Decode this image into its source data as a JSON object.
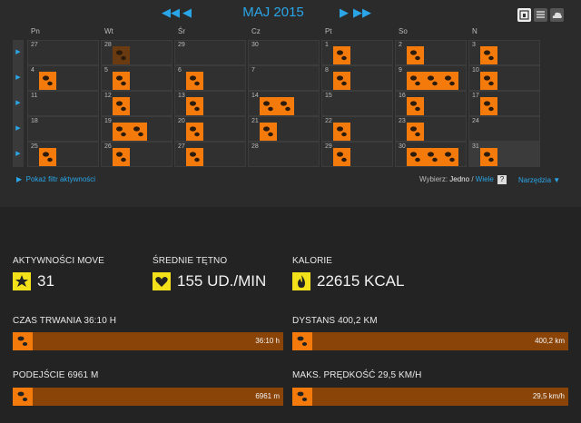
{
  "calendar": {
    "month_label": "MAJ 2015",
    "weekdays": [
      "Pn",
      "Wt",
      "Śr",
      "Cz",
      "Pt",
      "So",
      "N"
    ],
    "weeks": [
      [
        {
          "d": "27",
          "n": 0
        },
        {
          "d": "28",
          "n": 1,
          "dim": true
        },
        {
          "d": "29",
          "n": 0
        },
        {
          "d": "30",
          "n": 0
        },
        {
          "d": "1",
          "n": 1
        },
        {
          "d": "2",
          "n": 1
        },
        {
          "d": "3",
          "n": 1
        }
      ],
      [
        {
          "d": "4",
          "n": 1
        },
        {
          "d": "5",
          "n": 1
        },
        {
          "d": "6",
          "n": 1
        },
        {
          "d": "7",
          "n": 0
        },
        {
          "d": "8",
          "n": 1
        },
        {
          "d": "9",
          "n": 3
        },
        {
          "d": "10",
          "n": 1
        }
      ],
      [
        {
          "d": "11",
          "n": 0
        },
        {
          "d": "12",
          "n": 1
        },
        {
          "d": "13",
          "n": 1
        },
        {
          "d": "14",
          "n": 2
        },
        {
          "d": "15",
          "n": 0
        },
        {
          "d": "16",
          "n": 1
        },
        {
          "d": "17",
          "n": 1
        }
      ],
      [
        {
          "d": "18",
          "n": 0
        },
        {
          "d": "19",
          "n": 2
        },
        {
          "d": "20",
          "n": 1
        },
        {
          "d": "21",
          "n": 1
        },
        {
          "d": "22",
          "n": 1
        },
        {
          "d": "23",
          "n": 1
        },
        {
          "d": "24",
          "n": 0
        }
      ],
      [
        {
          "d": "25",
          "n": 1
        },
        {
          "d": "26",
          "n": 1
        },
        {
          "d": "27",
          "n": 1
        },
        {
          "d": "28",
          "n": 0
        },
        {
          "d": "29",
          "n": 1
        },
        {
          "d": "30",
          "n": 3
        },
        {
          "d": "31",
          "n": 1,
          "today": true
        }
      ]
    ]
  },
  "filter_link": "Pokaż filtr aktywności",
  "select": {
    "label": "Wybierz:",
    "one": "Jedno",
    "sep": "/",
    "many": "Wiele",
    "help": "?"
  },
  "tools_label": "Narzędzia",
  "stats": {
    "moves": {
      "label": "Aktywności MOVE",
      "value": "31"
    },
    "hr": {
      "label": "Średnie tętno",
      "value": "155 UD./MIN"
    },
    "cal": {
      "label": "Kalorie",
      "value": "22615 KCAL"
    }
  },
  "bars": {
    "duration": {
      "label": "Czas trwania 36:10 h",
      "value": "36:10 h",
      "fraction": 1.0
    },
    "distance": {
      "label": "Dystans 400,2 km",
      "value": "400,2 km",
      "fraction": 1.0
    },
    "ascent": {
      "label": "Podejście 6961 m",
      "value": "6961 m",
      "fraction": 1.0
    },
    "speed": {
      "label": "Maks. prędkość 29,5 km/h",
      "value": "29,5 km/h",
      "fraction": 1.0
    }
  },
  "colors": {
    "accent": "#2aa6e8",
    "activity": "#f47a0c",
    "bar": "#8a4408",
    "stat_icon": "#f2e11a"
  }
}
